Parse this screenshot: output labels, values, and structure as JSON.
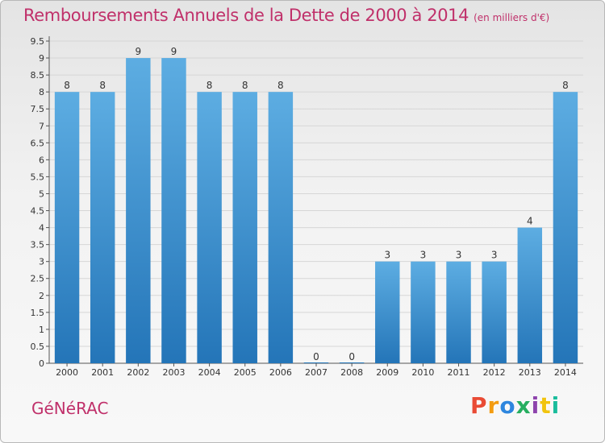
{
  "header": {
    "title": "Remboursements Annuels de la Dette de 2000 à 2014",
    "unit": "(en milliers d'€)"
  },
  "footer": {
    "commune": "GéNéRAC",
    "brand": "Proxiti",
    "brand_colors": [
      "#e94b35",
      "#f39c12",
      "#2e86de",
      "#27ae60",
      "#8e44ad",
      "#f1c40f",
      "#1abc9c"
    ]
  },
  "colors": {
    "bar_light": "#5dade2",
    "bar_dark": "#2475b8",
    "title": "#c0306a"
  },
  "chart_data": {
    "type": "bar",
    "categories": [
      "2000",
      "2001",
      "2002",
      "2003",
      "2004",
      "2005",
      "2006",
      "2007",
      "2008",
      "2009",
      "2010",
      "2011",
      "2012",
      "2013",
      "2014"
    ],
    "values": [
      8,
      8,
      9,
      9,
      8,
      8,
      8,
      0,
      0,
      3,
      3,
      3,
      3,
      4,
      8
    ],
    "value_labels": [
      "8",
      "8",
      "9",
      "9",
      "8",
      "8",
      "8",
      "0",
      "0",
      "3",
      "3",
      "3",
      "3",
      "4",
      "8"
    ],
    "yticks": [
      "0",
      "0.5",
      "1",
      "1.5",
      "2",
      "2.5",
      "3",
      "3.5",
      "4",
      "4.5",
      "5",
      "5.5",
      "6",
      "6.5",
      "7",
      "7.5",
      "8",
      "8.5",
      "9",
      "9.5"
    ],
    "ylim": [
      0,
      9.5
    ],
    "grid": true
  }
}
